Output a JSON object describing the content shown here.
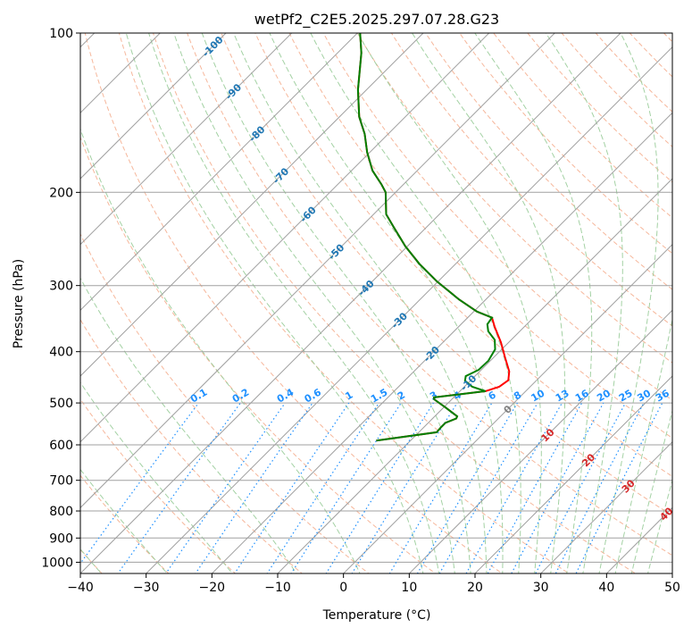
{
  "chart_data": {
    "type": "line",
    "subtype": "skew-t log-p",
    "title": "wetPf2_C2E5.2025.297.07.28.G23",
    "xlabel": "Temperature (°C)",
    "ylabel": "Pressure (hPa)",
    "xlim": [
      -40,
      50
    ],
    "ylim": [
      1050,
      100
    ],
    "xticks": [
      "−40",
      "−30",
      "−20",
      "−10",
      "0",
      "10",
      "20",
      "30",
      "40",
      "50"
    ],
    "xtick_values": [
      -40,
      -30,
      -20,
      -10,
      0,
      10,
      20,
      30,
      40,
      50
    ],
    "yticks": [
      "100",
      "200",
      "300",
      "400",
      "500",
      "600",
      "700",
      "800",
      "900",
      "1000"
    ],
    "ytick_values": [
      100,
      200,
      300,
      400,
      500,
      600,
      700,
      800,
      900,
      1000
    ],
    "grid": true,
    "colors": {
      "temperature": "#ff0000",
      "dewpoint": "#008000",
      "isotherm": "#a0a0a0",
      "dry_adiabat": "#f4a582",
      "moist_adiabat": "#99cc99",
      "mixing_ratio": "#1e90ff",
      "neg_label": "#1f77b4",
      "zero_label": "#808080",
      "pos_label": "#d62728"
    },
    "series": [
      {
        "name": "Temperature",
        "pressure": [
          100,
          109,
          128,
          144,
          155,
          168,
          182,
          193,
          200,
          220,
          231,
          253,
          273,
          295,
          319,
          336,
          345,
          359,
          384,
          409,
          436,
          453,
          466,
          475,
          488,
          492,
          510,
          530,
          535,
          545,
          555,
          568,
          589
        ],
        "temperature": [
          -79.6,
          -76.4,
          -71.3,
          -67.0,
          -63.6,
          -60.4,
          -56.8,
          -53.4,
          -51.5,
          -48.1,
          -45.4,
          -40.3,
          -35.5,
          -30.1,
          -24.0,
          -19.5,
          -16.3,
          -14.5,
          -11.2,
          -8.4,
          -5.5,
          -4.3,
          -4.7,
          -6.1,
          -13.0,
          -12.7,
          -9.7,
          -6.6,
          -6.4,
          -7.4,
          -7.4,
          -7.3,
          -15.2
        ]
      },
      {
        "name": "Dewpoint",
        "pressure": [
          100,
          109,
          128,
          144,
          155,
          168,
          182,
          193,
          200,
          220,
          231,
          253,
          273,
          295,
          319,
          336,
          345,
          355,
          366,
          380,
          396,
          416,
          433,
          445,
          454,
          466,
          475,
          488,
          492,
          510,
          530,
          535,
          545,
          555,
          568,
          589
        ],
        "temperature": [
          -79.6,
          -76.4,
          -71.3,
          -67.0,
          -63.6,
          -60.4,
          -56.8,
          -53.4,
          -51.5,
          -48.1,
          -45.4,
          -40.3,
          -35.5,
          -30.1,
          -24.0,
          -19.5,
          -16.3,
          -16.0,
          -14.8,
          -12.5,
          -11.0,
          -10.3,
          -10.4,
          -11.4,
          -10.8,
          -8.8,
          -6.1,
          -13.0,
          -12.7,
          -9.7,
          -6.6,
          -6.4,
          -7.4,
          -7.4,
          -7.3,
          -15.2
        ]
      }
    ],
    "isotherm_labels": [
      {
        "text": "-100",
        "value": -100,
        "pressure": 106
      },
      {
        "text": "-90",
        "value": -90,
        "pressure": 129
      },
      {
        "text": "-80",
        "value": -80,
        "pressure": 155
      },
      {
        "text": "-70",
        "value": -70,
        "pressure": 186
      },
      {
        "text": "-60",
        "value": -60,
        "pressure": 220
      },
      {
        "text": "-50",
        "value": -50,
        "pressure": 259
      },
      {
        "text": "-40",
        "value": -40,
        "pressure": 303
      },
      {
        "text": "-30",
        "value": -30,
        "pressure": 349
      },
      {
        "text": "-20",
        "value": -20,
        "pressure": 404
      },
      {
        "text": "-10",
        "value": -10,
        "pressure": 458
      },
      {
        "text": "0",
        "value": 0,
        "pressure": 514
      },
      {
        "text": "10",
        "value": 10,
        "pressure": 575
      },
      {
        "text": "20",
        "value": 20,
        "pressure": 641
      },
      {
        "text": "30",
        "value": 30,
        "pressure": 718
      },
      {
        "text": "40",
        "value": 40,
        "pressure": 810
      }
    ],
    "mixing_ratio_labels": [
      "0.1",
      "0.2",
      "0.4",
      "0.6",
      "1",
      "1.5",
      "2",
      "3",
      "4",
      "6",
      "8",
      "10",
      "13",
      "16",
      "20",
      "25",
      "30",
      "36"
    ],
    "mixing_ratios_gkg": [
      0.1,
      0.2,
      0.4,
      0.6,
      1,
      1.5,
      2,
      3,
      4,
      6,
      8,
      10,
      13,
      16,
      20,
      25,
      30,
      36
    ]
  }
}
